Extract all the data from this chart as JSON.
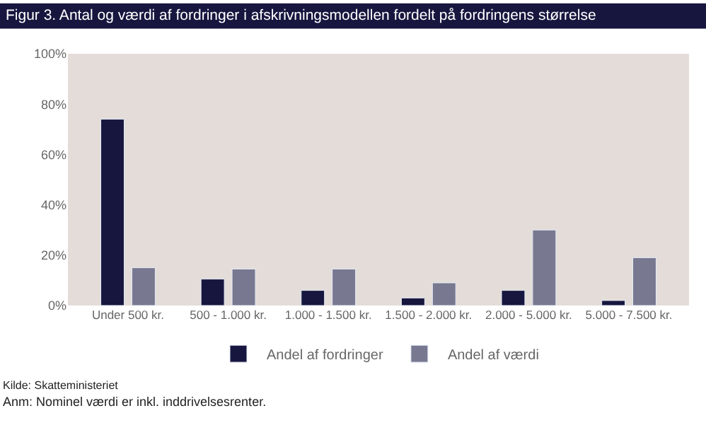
{
  "chart_data": {
    "type": "bar",
    "title": "Figur 3. Antal og værdi af fordringer i afskrivningsmodellen fordelt på fordringens størrelse",
    "categories": [
      "Under 500 kr.",
      "500 - 1.000 kr.",
      "1.000 - 1.500 kr.",
      "1.500 - 2.000 kr.",
      "2.000 - 5.000 kr.",
      "5.000 - 7.500 kr."
    ],
    "series": [
      {
        "name": "Andel af fordringer",
        "color": "#17163f",
        "values": [
          74,
          10.5,
          6,
          3,
          6,
          2
        ]
      },
      {
        "name": "Andel af værdi",
        "color": "#787890",
        "values": [
          15,
          14.5,
          14.5,
          9,
          30,
          19
        ]
      }
    ],
    "ylim": [
      0,
      100
    ],
    "yticks": [
      {
        "value": 0,
        "label": "0%"
      },
      {
        "value": 20,
        "label": "20%"
      },
      {
        "value": 40,
        "label": "40%"
      },
      {
        "value": 60,
        "label": "60%"
      },
      {
        "value": 80,
        "label": "80%"
      },
      {
        "value": 100,
        "label": "100%"
      }
    ],
    "grid": false,
    "legend": "bottom",
    "annotations": [
      "Kilde: Skatteministeriet",
      "Anm: Nominel værdi er inkl. inddrivelsesrenter."
    ]
  }
}
